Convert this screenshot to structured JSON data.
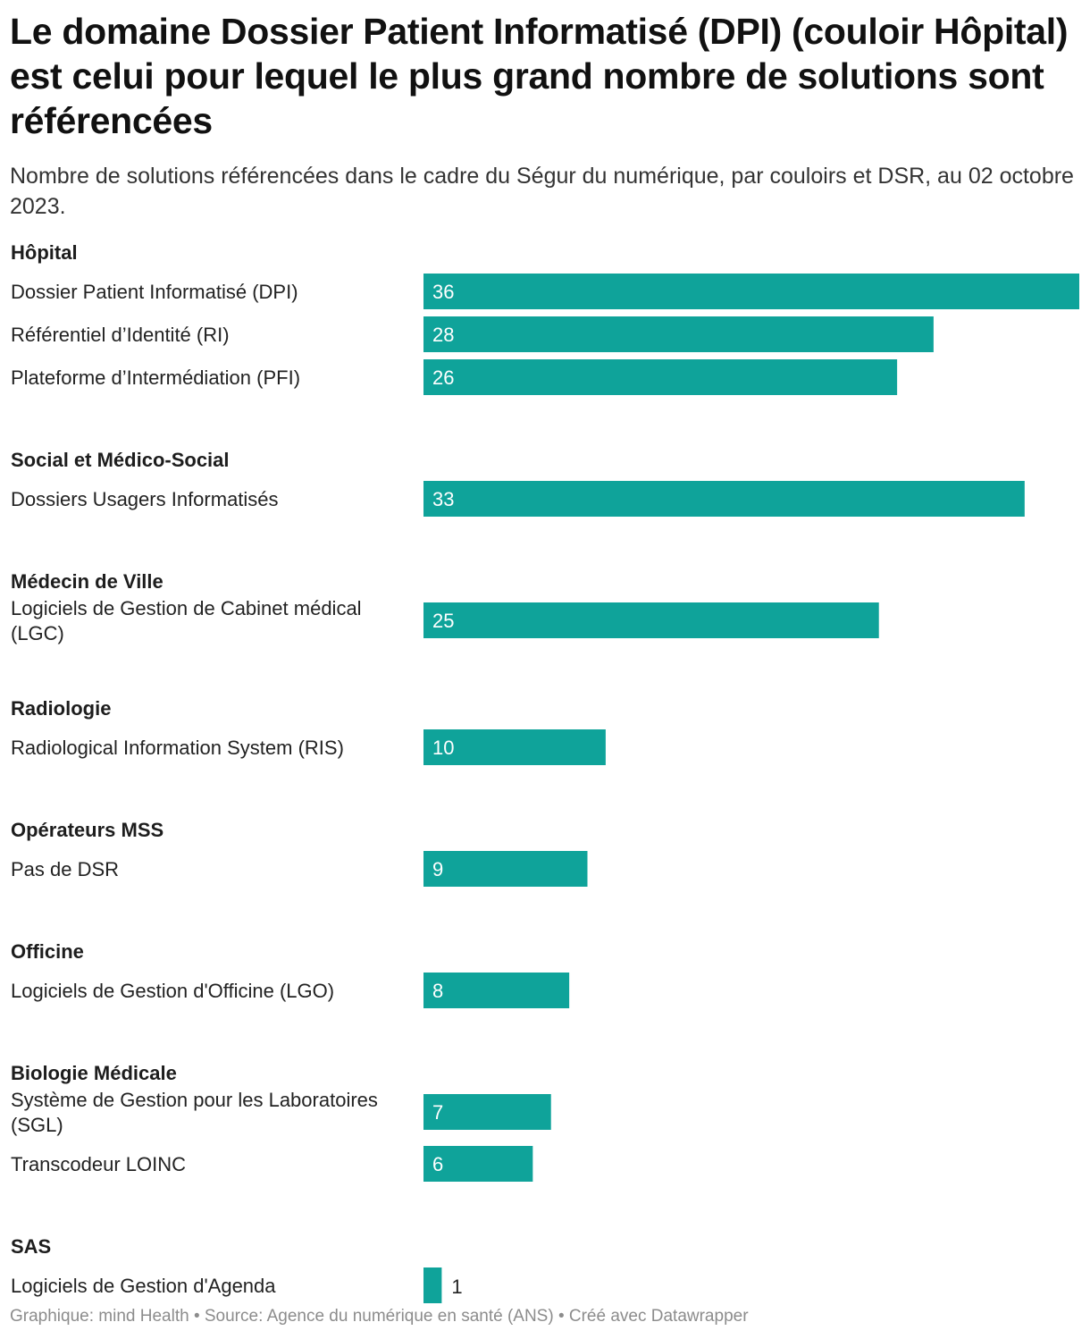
{
  "chart_data": {
    "type": "bar",
    "orientation": "horizontal",
    "title": "Le domaine Dossier Patient Informatisé (DPI) (couloir Hôpital) est celui pour lequel le plus grand nombre de solutions sont référencées",
    "subtitle": "Nombre de solutions référencées dans le cadre du Ségur du numérique, par couloirs et DSR, au 02 octobre 2023.",
    "bar_color": "#0fa39a",
    "xlim": [
      0,
      36
    ],
    "grid": false,
    "groups": [
      {
        "name": "Hôpital",
        "items": [
          {
            "label": "Dossier Patient Informatisé (DPI)",
            "value": 36
          },
          {
            "label": "Référentiel d’Identité (RI)",
            "value": 28
          },
          {
            "label": "Plateforme d’Intermédiation (PFI)",
            "value": 26
          }
        ]
      },
      {
        "name": "Social et Médico-Social",
        "items": [
          {
            "label": "Dossiers Usagers Informatisés",
            "value": 33
          }
        ]
      },
      {
        "name": "Médecin de Ville",
        "items": [
          {
            "label": "Logiciels de Gestion de Cabinet médical (LGC)",
            "value": 25
          }
        ]
      },
      {
        "name": "Radiologie",
        "items": [
          {
            "label": "Radiological Information System (RIS)",
            "value": 10
          }
        ]
      },
      {
        "name": "Opérateurs MSS",
        "items": [
          {
            "label": "Pas de DSR",
            "value": 9
          }
        ]
      },
      {
        "name": "Officine",
        "items": [
          {
            "label": "Logiciels de Gestion d'Officine (LGO)",
            "value": 8
          }
        ]
      },
      {
        "name": "Biologie Médicale",
        "items": [
          {
            "label": "Système de Gestion pour les Laboratoires (SGL)",
            "value": 7
          },
          {
            "label": "Transcodeur LOINC",
            "value": 6
          }
        ]
      },
      {
        "name": "SAS",
        "items": [
          {
            "label": "Logiciels de Gestion d'Agenda",
            "value": 1
          }
        ]
      }
    ]
  },
  "footer": "Graphique: mind Health • Source: Agence du numérique en santé (ANS) • Créé avec Datawrapper"
}
